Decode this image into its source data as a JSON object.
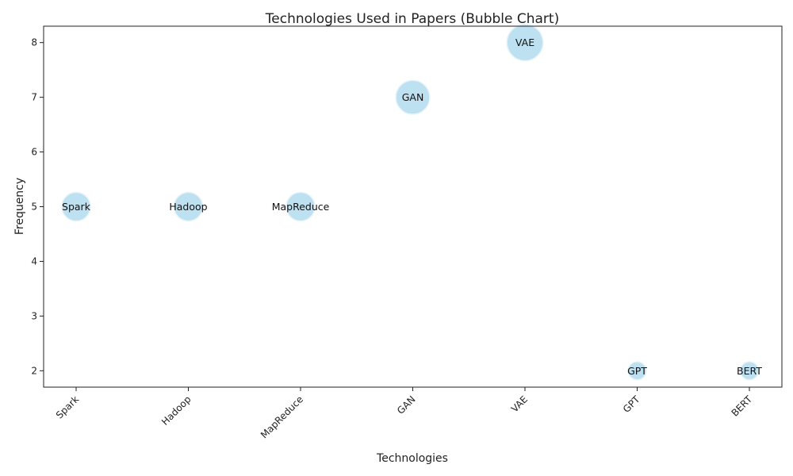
{
  "chart_data": {
    "type": "scatter",
    "title": "Technologies Used in Papers (Bubble Chart)",
    "xlabel": "Technologies",
    "ylabel": "Frequency",
    "categories": [
      "Spark",
      "Hadoop",
      "MapReduce",
      "GAN",
      "VAE",
      "GPT",
      "BERT"
    ],
    "values": [
      5,
      5,
      5,
      7,
      8,
      2,
      2
    ],
    "ylim": [
      1.7,
      8.3
    ],
    "yticks": [
      "2",
      "3",
      "4",
      "5",
      "6",
      "7",
      "8"
    ],
    "grid": false,
    "bubble_color": "#b7def0"
  }
}
